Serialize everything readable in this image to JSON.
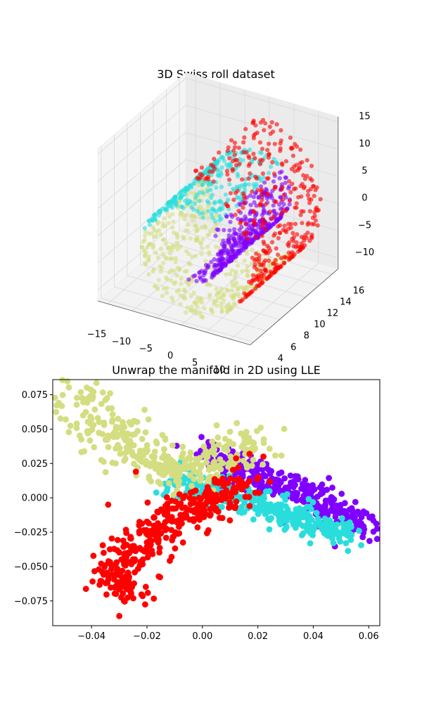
{
  "colors": {
    "purple": "#8000ff",
    "cyan": "#2adddd",
    "khaki": "#d4dd80",
    "red": "#ff0000"
  },
  "chart_data": [
    {
      "type": "scatter",
      "projection": "3d",
      "title": "3D Swiss roll dataset",
      "xlim": [
        -17,
        14
      ],
      "ylim": [
        3.5,
        17
      ],
      "zlim": [
        -12,
        16
      ],
      "x_ticks": [
        -15,
        -10,
        -5,
        0,
        5,
        10
      ],
      "y_ticks": [
        4,
        6,
        8,
        10,
        12,
        14,
        16
      ],
      "z_ticks": [
        -10,
        -5,
        0,
        5,
        10,
        15
      ],
      "x_tick_labels": [
        "−15",
        "−10",
        "−5",
        "0",
        "5",
        "10"
      ],
      "y_tick_labels": [
        "4",
        "6",
        "8",
        "10",
        "12",
        "14",
        "16"
      ],
      "z_tick_labels": [
        "−10",
        "−5",
        "0",
        "5",
        "10",
        "15"
      ],
      "point_count": 1500,
      "color_groups": [
        "purple",
        "cyan",
        "khaki",
        "red"
      ],
      "marker_alpha": 0.6,
      "x_label": "",
      "y_label": "",
      "z_label": ""
    },
    {
      "type": "scatter",
      "title": "Unwrap the manifold in 2D using LLE",
      "xlim": [
        -0.054,
        0.064
      ],
      "ylim": [
        -0.093,
        0.086
      ],
      "x_ticks": [
        -0.04,
        -0.02,
        0.0,
        0.02,
        0.04,
        0.06
      ],
      "y_ticks": [
        -0.075,
        -0.05,
        -0.025,
        0.0,
        0.025,
        0.05,
        0.075
      ],
      "x_tick_labels": [
        "−0.04",
        "−0.02",
        "0.00",
        "0.02",
        "0.04",
        "0.06"
      ],
      "y_tick_labels": [
        "−0.075",
        "−0.050",
        "−0.025",
        "0.000",
        "0.025",
        "0.050",
        "0.075"
      ],
      "x_label": "",
      "y_label": "",
      "color_groups": [
        "purple",
        "cyan",
        "khaki",
        "red"
      ],
      "series_shape": [
        {
          "name": "purple",
          "path": [
            [
              0.002,
              0.035
            ],
            [
              0.02,
              0.015
            ],
            [
              0.04,
              0.0
            ],
            [
              0.058,
              -0.022
            ]
          ],
          "spread": 0.005
        },
        {
          "name": "cyan",
          "path": [
            [
              -0.01,
              0.015
            ],
            [
              0.01,
              0.0
            ],
            [
              0.03,
              -0.012
            ],
            [
              0.054,
              -0.03
            ]
          ],
          "spread": 0.005
        },
        {
          "name": "khaki",
          "path": [
            [
              -0.048,
              0.08
            ],
            [
              -0.03,
              0.045
            ],
            [
              -0.015,
              0.025
            ],
            [
              0.0,
              0.02
            ],
            [
              0.02,
              0.04
            ]
          ],
          "spread": 0.008
        },
        {
          "name": "red",
          "path": [
            [
              -0.03,
              -0.075
            ],
            [
              -0.028,
              -0.045
            ],
            [
              -0.015,
              -0.02
            ],
            [
              0.0,
              -0.005
            ],
            [
              0.015,
              0.012
            ]
          ],
          "spread": 0.006
        }
      ]
    }
  ]
}
